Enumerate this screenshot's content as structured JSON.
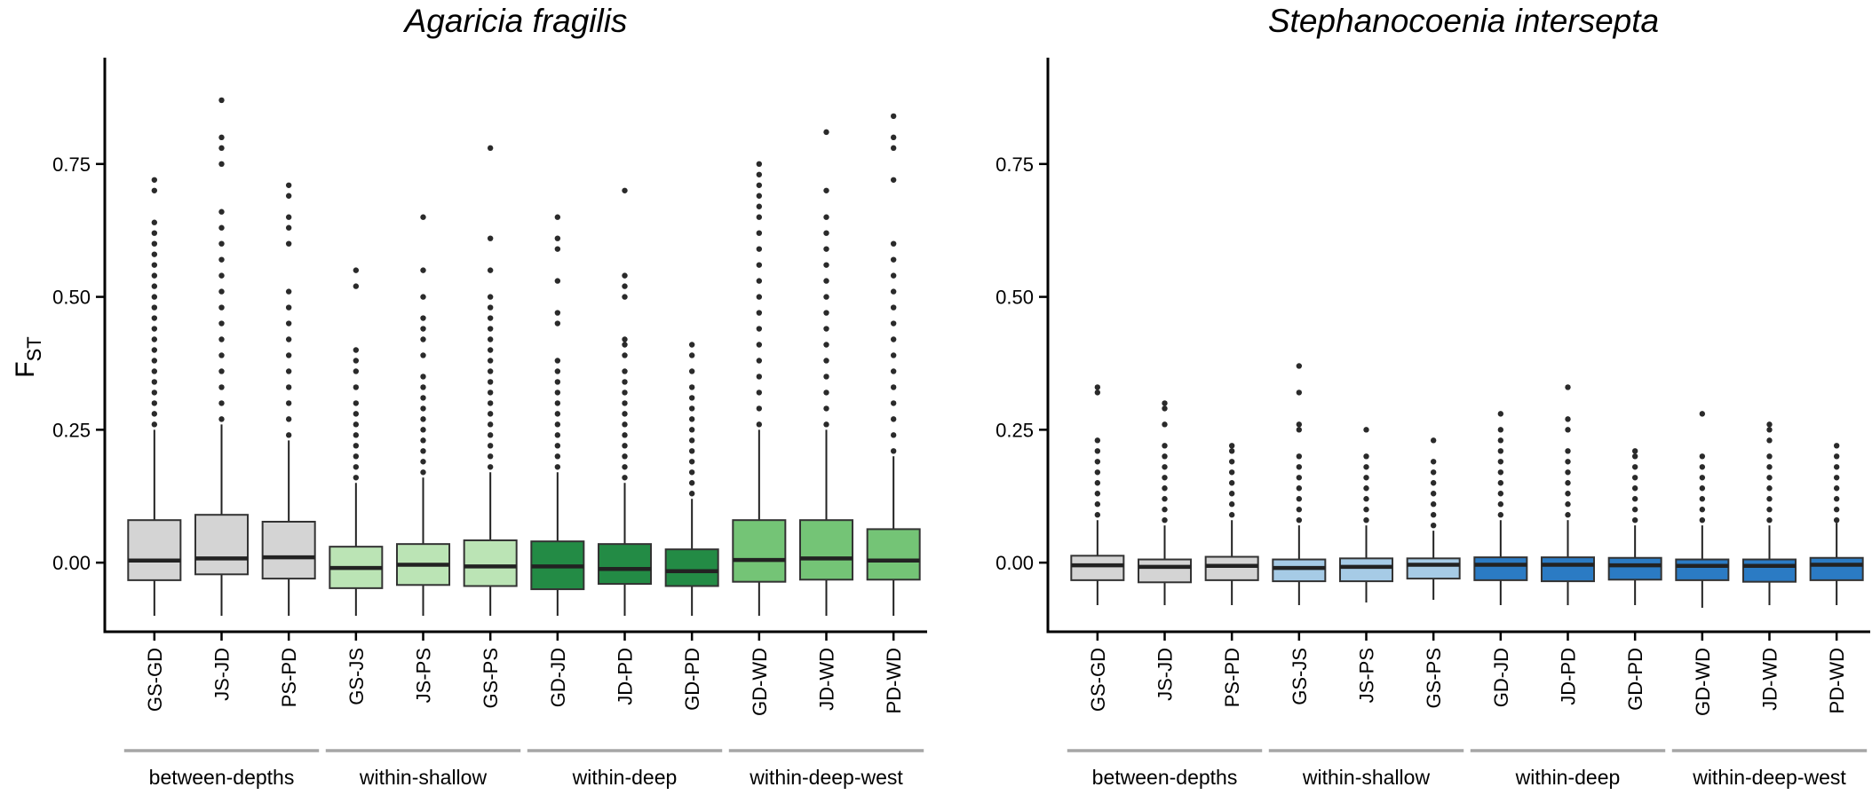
{
  "chart_data": [
    {
      "type": "boxplot",
      "title": "Agaricia fragilis",
      "ylabel_main": "F",
      "ylabel_sub": "ST",
      "ylim": [
        -0.13,
        0.95
      ],
      "yticks": [
        "0.00",
        "0.25",
        "0.50",
        "0.75"
      ],
      "ytick_values": [
        0,
        0.25,
        0.5,
        0.75
      ],
      "groups": [
        {
          "label": "between-depths",
          "color": "#d4d4d4"
        },
        {
          "label": "within-shallow",
          "color": "#bbe4b5"
        },
        {
          "label": "within-deep",
          "color": "#238b45"
        },
        {
          "label": "within-deep-west",
          "color": "#74c476"
        }
      ],
      "boxes": [
        {
          "label": "GS-GD",
          "group": 0,
          "min": -0.1,
          "q1": -0.033,
          "median": 0.004,
          "q3": 0.08,
          "max": 0.25,
          "outliers": [
            0.26,
            0.28,
            0.3,
            0.32,
            0.34,
            0.36,
            0.38,
            0.4,
            0.42,
            0.44,
            0.46,
            0.48,
            0.5,
            0.52,
            0.54,
            0.56,
            0.58,
            0.6,
            0.62,
            0.64,
            0.7,
            0.72
          ]
        },
        {
          "label": "JS-JD",
          "group": 0,
          "min": -0.1,
          "q1": -0.022,
          "median": 0.008,
          "q3": 0.09,
          "max": 0.26,
          "outliers": [
            0.27,
            0.3,
            0.33,
            0.36,
            0.39,
            0.42,
            0.45,
            0.48,
            0.51,
            0.54,
            0.57,
            0.6,
            0.63,
            0.66,
            0.75,
            0.78,
            0.8,
            0.87
          ]
        },
        {
          "label": "PS-PD",
          "group": 0,
          "min": -0.1,
          "q1": -0.03,
          "median": 0.01,
          "q3": 0.077,
          "max": 0.23,
          "outliers": [
            0.24,
            0.27,
            0.3,
            0.33,
            0.36,
            0.39,
            0.42,
            0.45,
            0.48,
            0.51,
            0.6,
            0.63,
            0.65,
            0.69,
            0.71
          ]
        },
        {
          "label": "GS-JS",
          "group": 1,
          "min": -0.1,
          "q1": -0.048,
          "median": -0.01,
          "q3": 0.03,
          "max": 0.15,
          "outliers": [
            0.16,
            0.18,
            0.2,
            0.22,
            0.24,
            0.26,
            0.28,
            0.3,
            0.33,
            0.36,
            0.38,
            0.4,
            0.52,
            0.55
          ]
        },
        {
          "label": "JS-PS",
          "group": 1,
          "min": -0.1,
          "q1": -0.042,
          "median": -0.004,
          "q3": 0.035,
          "max": 0.16,
          "outliers": [
            0.17,
            0.19,
            0.21,
            0.23,
            0.25,
            0.27,
            0.29,
            0.31,
            0.33,
            0.35,
            0.39,
            0.42,
            0.44,
            0.46,
            0.5,
            0.55,
            0.65
          ]
        },
        {
          "label": "GS-PS",
          "group": 1,
          "min": -0.1,
          "q1": -0.044,
          "median": -0.007,
          "q3": 0.042,
          "max": 0.17,
          "outliers": [
            0.18,
            0.2,
            0.22,
            0.24,
            0.26,
            0.28,
            0.3,
            0.32,
            0.34,
            0.36,
            0.38,
            0.4,
            0.42,
            0.44,
            0.46,
            0.48,
            0.5,
            0.55,
            0.61,
            0.78
          ]
        },
        {
          "label": "GD-JD",
          "group": 2,
          "min": -0.1,
          "q1": -0.05,
          "median": -0.007,
          "q3": 0.04,
          "max": 0.17,
          "outliers": [
            0.18,
            0.2,
            0.22,
            0.24,
            0.26,
            0.28,
            0.3,
            0.32,
            0.34,
            0.36,
            0.38,
            0.45,
            0.47,
            0.53,
            0.59,
            0.61,
            0.65
          ]
        },
        {
          "label": "JD-PD",
          "group": 2,
          "min": -0.1,
          "q1": -0.04,
          "median": -0.012,
          "q3": 0.035,
          "max": 0.15,
          "outliers": [
            0.16,
            0.18,
            0.2,
            0.22,
            0.24,
            0.26,
            0.28,
            0.3,
            0.32,
            0.34,
            0.36,
            0.39,
            0.41,
            0.42,
            0.5,
            0.52,
            0.54,
            0.7
          ]
        },
        {
          "label": "GD-PD",
          "group": 2,
          "min": -0.1,
          "q1": -0.044,
          "median": -0.016,
          "q3": 0.025,
          "max": 0.12,
          "outliers": [
            0.13,
            0.15,
            0.17,
            0.19,
            0.21,
            0.23,
            0.25,
            0.27,
            0.29,
            0.31,
            0.33,
            0.36,
            0.39,
            0.41
          ]
        },
        {
          "label": "GD-WD",
          "group": 3,
          "min": -0.1,
          "q1": -0.036,
          "median": 0.005,
          "q3": 0.08,
          "max": 0.25,
          "outliers": [
            0.26,
            0.29,
            0.32,
            0.35,
            0.38,
            0.41,
            0.44,
            0.47,
            0.5,
            0.53,
            0.56,
            0.59,
            0.62,
            0.65,
            0.67,
            0.69,
            0.71,
            0.73,
            0.75
          ]
        },
        {
          "label": "JD-WD",
          "group": 3,
          "min": -0.1,
          "q1": -0.032,
          "median": 0.008,
          "q3": 0.08,
          "max": 0.25,
          "outliers": [
            0.26,
            0.29,
            0.32,
            0.35,
            0.38,
            0.41,
            0.44,
            0.47,
            0.5,
            0.53,
            0.56,
            0.59,
            0.62,
            0.65,
            0.7,
            0.81
          ]
        },
        {
          "label": "PD-WD",
          "group": 3,
          "min": -0.1,
          "q1": -0.032,
          "median": 0.004,
          "q3": 0.063,
          "max": 0.2,
          "outliers": [
            0.21,
            0.24,
            0.27,
            0.3,
            0.33,
            0.36,
            0.39,
            0.42,
            0.45,
            0.48,
            0.51,
            0.54,
            0.57,
            0.6,
            0.72,
            0.78,
            0.8,
            0.84
          ]
        }
      ]
    },
    {
      "type": "boxplot",
      "title": "Stephanocoenia intersepta",
      "ylabel_main": "F",
      "ylabel_sub": "ST",
      "ylim": [
        -0.13,
        0.95
      ],
      "yticks": [
        "0.00",
        "0.25",
        "0.50",
        "0.75"
      ],
      "ytick_values": [
        0,
        0.25,
        0.5,
        0.75
      ],
      "groups": [
        {
          "label": "between-depths",
          "color": "#d4d4d4"
        },
        {
          "label": "within-shallow",
          "color": "#a6cbe6"
        },
        {
          "label": "within-deep",
          "color": "#2b7bc4"
        },
        {
          "label": "within-deep-west",
          "color": "#2b7bc4"
        }
      ],
      "boxes": [
        {
          "label": "GS-GD",
          "group": 0,
          "min": -0.08,
          "q1": -0.033,
          "median": -0.005,
          "q3": 0.013,
          "max": 0.08,
          "outliers": [
            0.09,
            0.11,
            0.13,
            0.15,
            0.17,
            0.19,
            0.21,
            0.23,
            0.32,
            0.33
          ]
        },
        {
          "label": "JS-JD",
          "group": 0,
          "min": -0.08,
          "q1": -0.037,
          "median": -0.008,
          "q3": 0.006,
          "max": 0.07,
          "outliers": [
            0.08,
            0.1,
            0.12,
            0.14,
            0.16,
            0.18,
            0.2,
            0.22,
            0.26,
            0.29,
            0.3
          ]
        },
        {
          "label": "PS-PD",
          "group": 0,
          "min": -0.08,
          "q1": -0.033,
          "median": -0.006,
          "q3": 0.011,
          "max": 0.08,
          "outliers": [
            0.09,
            0.11,
            0.13,
            0.15,
            0.17,
            0.19,
            0.21,
            0.22
          ]
        },
        {
          "label": "GS-JS",
          "group": 1,
          "min": -0.08,
          "q1": -0.035,
          "median": -0.01,
          "q3": 0.006,
          "max": 0.07,
          "outliers": [
            0.08,
            0.1,
            0.12,
            0.14,
            0.16,
            0.18,
            0.2,
            0.25,
            0.26,
            0.32,
            0.37
          ]
        },
        {
          "label": "JS-PS",
          "group": 1,
          "min": -0.075,
          "q1": -0.035,
          "median": -0.008,
          "q3": 0.008,
          "max": 0.07,
          "outliers": [
            0.08,
            0.1,
            0.12,
            0.14,
            0.16,
            0.18,
            0.2,
            0.25
          ]
        },
        {
          "label": "GS-PS",
          "group": 1,
          "min": -0.07,
          "q1": -0.03,
          "median": -0.004,
          "q3": 0.008,
          "max": 0.06,
          "outliers": [
            0.07,
            0.09,
            0.11,
            0.13,
            0.15,
            0.17,
            0.19,
            0.23
          ]
        },
        {
          "label": "GD-JD",
          "group": 2,
          "min": -0.08,
          "q1": -0.033,
          "median": -0.004,
          "q3": 0.01,
          "max": 0.08,
          "outliers": [
            0.09,
            0.11,
            0.13,
            0.15,
            0.17,
            0.19,
            0.21,
            0.23,
            0.25,
            0.28
          ]
        },
        {
          "label": "JD-PD",
          "group": 2,
          "min": -0.08,
          "q1": -0.035,
          "median": -0.004,
          "q3": 0.01,
          "max": 0.08,
          "outliers": [
            0.09,
            0.11,
            0.13,
            0.15,
            0.17,
            0.19,
            0.21,
            0.25,
            0.27,
            0.33
          ]
        },
        {
          "label": "GD-PD",
          "group": 2,
          "min": -0.08,
          "q1": -0.032,
          "median": -0.005,
          "q3": 0.009,
          "max": 0.07,
          "outliers": [
            0.08,
            0.1,
            0.12,
            0.14,
            0.16,
            0.18,
            0.2,
            0.21
          ]
        },
        {
          "label": "GD-WD",
          "group": 3,
          "min": -0.085,
          "q1": -0.033,
          "median": -0.006,
          "q3": 0.006,
          "max": 0.07,
          "outliers": [
            0.08,
            0.1,
            0.12,
            0.14,
            0.16,
            0.18,
            0.2,
            0.28
          ]
        },
        {
          "label": "JD-WD",
          "group": 3,
          "min": -0.08,
          "q1": -0.036,
          "median": -0.006,
          "q3": 0.006,
          "max": 0.07,
          "outliers": [
            0.08,
            0.1,
            0.12,
            0.14,
            0.16,
            0.18,
            0.2,
            0.23,
            0.25,
            0.26
          ]
        },
        {
          "label": "PD-WD",
          "group": 3,
          "min": -0.08,
          "q1": -0.033,
          "median": -0.004,
          "q3": 0.009,
          "max": 0.075,
          "outliers": [
            0.08,
            0.1,
            0.12,
            0.14,
            0.16,
            0.18,
            0.2,
            0.22
          ]
        }
      ]
    }
  ]
}
